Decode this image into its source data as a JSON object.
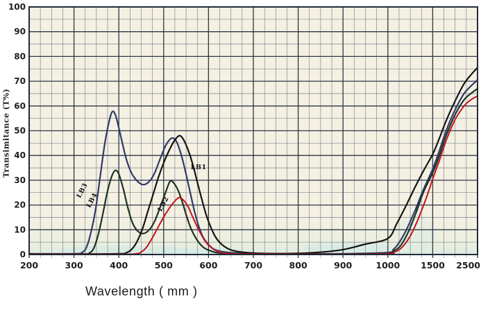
{
  "page": {
    "background": "#ffffff"
  },
  "chart": {
    "plot_bg_color": "#f4f0e2",
    "grid_major_color": "#2c3646",
    "grid_minor_color": "#566074",
    "border_color": "#202a38",
    "tick_label_color": "#1d1d1d",
    "scan_tint_color": "#c8e9ea"
  },
  "chart_data": {
    "type": "line",
    "title": "",
    "xlabel": "Wavelength ( mm )",
    "ylabel": "Transimitance (T%)",
    "x_scale_note": "equal-width divisions between consecutive tick values (non-linear above 1000)",
    "x_tick_values": [
      200,
      300,
      400,
      500,
      600,
      700,
      800,
      900,
      1000,
      1500,
      2500
    ],
    "x_tick_labels": [
      "200",
      "300",
      "400",
      "500",
      "600",
      "700",
      "800",
      "900",
      "1000",
      "1500",
      "2500"
    ],
    "y_tick_values": [
      0,
      10,
      20,
      30,
      40,
      50,
      60,
      70,
      80,
      90,
      100
    ],
    "y_tick_labels": [
      "0",
      "10",
      "20",
      "30",
      "40",
      "50",
      "60",
      "70",
      "80",
      "90",
      "100"
    ],
    "ylim": [
      0,
      100
    ],
    "grid": {
      "x_minor_per_division": 4,
      "y_minor_step": 5,
      "grid_on": true
    },
    "legend_position": "inline-curve-labels",
    "series": [
      {
        "name": "LB3",
        "color": "#2e3a68",
        "points": [
          [
            200,
            0.3
          ],
          [
            300,
            0.3
          ],
          [
            318,
            0.8
          ],
          [
            328,
            3
          ],
          [
            338,
            9
          ],
          [
            348,
            18
          ],
          [
            358,
            31
          ],
          [
            368,
            44
          ],
          [
            378,
            53.5
          ],
          [
            386,
            57.8
          ],
          [
            394,
            55.5
          ],
          [
            404,
            48
          ],
          [
            416,
            39
          ],
          [
            428,
            33
          ],
          [
            442,
            29.5
          ],
          [
            455,
            28.2
          ],
          [
            468,
            29.5
          ],
          [
            480,
            33
          ],
          [
            494,
            39.5
          ],
          [
            506,
            44.5
          ],
          [
            518,
            47
          ],
          [
            528,
            45.8
          ],
          [
            538,
            41
          ],
          [
            548,
            34
          ],
          [
            558,
            26
          ],
          [
            568,
            18
          ],
          [
            578,
            11.5
          ],
          [
            588,
            7
          ],
          [
            600,
            4
          ],
          [
            614,
            2
          ],
          [
            636,
            1
          ],
          [
            680,
            0.5
          ],
          [
            800,
            0.3
          ],
          [
            900,
            0.3
          ],
          [
            1000,
            0.8
          ],
          [
            1060,
            2
          ],
          [
            1120,
            4.5
          ],
          [
            1200,
            9.5
          ],
          [
            1300,
            17.5
          ],
          [
            1400,
            26.5
          ],
          [
            1500,
            34.5
          ],
          [
            1650,
            42
          ],
          [
            1800,
            50
          ],
          [
            2000,
            58.5
          ],
          [
            2200,
            65
          ],
          [
            2350,
            68
          ],
          [
            2500,
            70.5
          ]
        ]
      },
      {
        "name": "LB4",
        "color": "#1c3224",
        "points": [
          [
            200,
            0.2
          ],
          [
            320,
            0.2
          ],
          [
            334,
            0.6
          ],
          [
            344,
            2.5
          ],
          [
            354,
            8
          ],
          [
            364,
            16
          ],
          [
            374,
            25
          ],
          [
            384,
            31.5
          ],
          [
            392,
            34
          ],
          [
            400,
            32.5
          ],
          [
            410,
            26.5
          ],
          [
            420,
            19
          ],
          [
            430,
            13
          ],
          [
            442,
            9.5
          ],
          [
            455,
            8.5
          ],
          [
            468,
            10
          ],
          [
            480,
            13.5
          ],
          [
            492,
            19
          ],
          [
            504,
            25
          ],
          [
            514,
            29.5
          ],
          [
            522,
            29
          ],
          [
            532,
            26
          ],
          [
            542,
            21
          ],
          [
            552,
            15
          ],
          [
            562,
            10
          ],
          [
            574,
            6
          ],
          [
            588,
            3
          ],
          [
            604,
            1.5
          ],
          [
            628,
            0.6
          ],
          [
            700,
            0.2
          ],
          [
            900,
            0.2
          ],
          [
            1000,
            0.5
          ],
          [
            1070,
            1.5
          ],
          [
            1140,
            3.5
          ],
          [
            1220,
            8.5
          ],
          [
            1310,
            16.5
          ],
          [
            1400,
            25.5
          ],
          [
            1500,
            33
          ],
          [
            1650,
            40
          ],
          [
            1800,
            48
          ],
          [
            2000,
            56.5
          ],
          [
            2200,
            62.5
          ],
          [
            2350,
            65
          ],
          [
            2500,
            67
          ]
        ]
      },
      {
        "name": "LB1",
        "color": "#141414",
        "points": [
          [
            200,
            0.2
          ],
          [
            320,
            0.2
          ],
          [
            400,
            0.3
          ],
          [
            415,
            0.6
          ],
          [
            428,
            2
          ],
          [
            440,
            5
          ],
          [
            452,
            10
          ],
          [
            464,
            17
          ],
          [
            476,
            24
          ],
          [
            488,
            31
          ],
          [
            500,
            37
          ],
          [
            512,
            42
          ],
          [
            524,
            46
          ],
          [
            535,
            48
          ],
          [
            544,
            46.5
          ],
          [
            554,
            42.5
          ],
          [
            564,
            37
          ],
          [
            574,
            30
          ],
          [
            584,
            23
          ],
          [
            594,
            16.5
          ],
          [
            604,
            11.5
          ],
          [
            616,
            7
          ],
          [
            630,
            4
          ],
          [
            648,
            2
          ],
          [
            672,
            1
          ],
          [
            710,
            0.5
          ],
          [
            780,
            0.4
          ],
          [
            840,
            0.8
          ],
          [
            900,
            2
          ],
          [
            950,
            4.2
          ],
          [
            1000,
            6.5
          ],
          [
            1100,
            12.5
          ],
          [
            1200,
            19.5
          ],
          [
            1300,
            27
          ],
          [
            1400,
            34
          ],
          [
            1500,
            40.5
          ],
          [
            1650,
            47
          ],
          [
            1800,
            54
          ],
          [
            2000,
            62
          ],
          [
            2200,
            69
          ],
          [
            2350,
            72.5
          ],
          [
            2500,
            75.5
          ]
        ]
      },
      {
        "name": "LB2",
        "color": "#c3131f",
        "points": [
          [
            200,
            0.1
          ],
          [
            400,
            0.1
          ],
          [
            438,
            0.3
          ],
          [
            450,
            1
          ],
          [
            462,
            3
          ],
          [
            474,
            6.5
          ],
          [
            486,
            10.5
          ],
          [
            498,
            14.5
          ],
          [
            510,
            18
          ],
          [
            522,
            21
          ],
          [
            534,
            23
          ],
          [
            544,
            22
          ],
          [
            554,
            19.5
          ],
          [
            564,
            15.5
          ],
          [
            574,
            11.5
          ],
          [
            584,
            8
          ],
          [
            594,
            5
          ],
          [
            606,
            2.8
          ],
          [
            620,
            1.3
          ],
          [
            640,
            0.5
          ],
          [
            680,
            0.2
          ],
          [
            900,
            0.1
          ],
          [
            1000,
            0.3
          ],
          [
            1080,
            1
          ],
          [
            1160,
            3
          ],
          [
            1250,
            7.5
          ],
          [
            1340,
            14.5
          ],
          [
            1430,
            23
          ],
          [
            1500,
            30.5
          ],
          [
            1650,
            38
          ],
          [
            1800,
            46
          ],
          [
            2000,
            54.5
          ],
          [
            2200,
            60
          ],
          [
            2350,
            62.5
          ],
          [
            2500,
            64
          ]
        ]
      }
    ],
    "annotations": [
      {
        "text": "LB3",
        "lambda": 322,
        "t": 25.5,
        "rotation": -62
      },
      {
        "text": "LB4",
        "lambda": 344,
        "t": 21.5,
        "rotation": -62
      },
      {
        "text": "LB1",
        "lambda": 578,
        "t": 34.5,
        "rotation": 0
      },
      {
        "text": "LB2",
        "lambda": 503,
        "t": 20,
        "rotation": -62
      }
    ]
  }
}
